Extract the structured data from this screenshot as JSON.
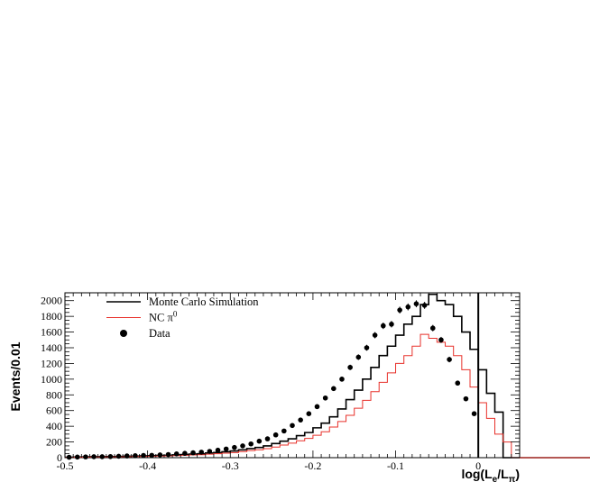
{
  "chart_data": {
    "type": "line",
    "xlabel_main": "log(L",
    "xlabel_sub1": "e",
    "xlabel_mid": "/L",
    "xlabel_sub2": "π",
    "xlabel_end": ")",
    "ylabel": "Events/0.01",
    "xlim": [
      -0.5,
      0.05
    ],
    "ylim": [
      0,
      2100
    ],
    "x_ticks": [
      -0.5,
      -0.4,
      -0.3,
      -0.2,
      -0.1,
      0
    ],
    "x_tick_labels": [
      "-0.5",
      "-0.4",
      "-0.3",
      "-0.2",
      "-0.1",
      "0"
    ],
    "y_ticks": [
      0,
      200,
      400,
      600,
      800,
      1000,
      1200,
      1400,
      1600,
      1800,
      2000
    ],
    "y_tick_labels": [
      "0",
      "200",
      "400",
      "600",
      "800",
      "1000",
      "1200",
      "1400",
      "1600",
      "1800",
      "2000"
    ],
    "bin_edges_start": -0.5,
    "bin_width": 0.01,
    "legend": {
      "placement": "top-left",
      "entries": [
        {
          "label": "Monte Carlo Simulation",
          "color": "#000000",
          "kind": "line"
        },
        {
          "label": "NC π",
          "sup": "0",
          "color": "#e8302a",
          "kind": "line"
        },
        {
          "label": "Data",
          "color": "#000000",
          "kind": "marker"
        }
      ]
    },
    "cut_line_x": 0,
    "series": [
      {
        "name": "Monte Carlo Simulation",
        "color": "#000000",
        "values": [
          5,
          8,
          10,
          12,
          12,
          14,
          15,
          18,
          20,
          22,
          25,
          28,
          30,
          35,
          40,
          45,
          50,
          60,
          65,
          75,
          85,
          100,
          115,
          130,
          150,
          180,
          210,
          240,
          280,
          320,
          380,
          440,
          520,
          620,
          740,
          860,
          1000,
          1150,
          1300,
          1420,
          1560,
          1700,
          1800,
          1950,
          2080,
          2000,
          1950,
          1800,
          1600,
          1380,
          1120,
          820,
          580,
          0,
          0,
          0,
          0,
          0,
          0,
          0,
          0,
          0,
          0,
          0,
          0
        ]
      },
      {
        "name": "NC π0",
        "color": "#e8302a",
        "values": [
          3,
          5,
          6,
          8,
          8,
          10,
          10,
          12,
          14,
          15,
          18,
          20,
          22,
          26,
          30,
          34,
          38,
          45,
          50,
          58,
          65,
          78,
          90,
          100,
          115,
          135,
          160,
          185,
          215,
          245,
          285,
          330,
          390,
          460,
          540,
          630,
          730,
          840,
          960,
          1080,
          1200,
          1300,
          1420,
          1570,
          1520,
          1470,
          1420,
          1300,
          1120,
          900,
          700,
          500,
          300,
          200,
          0,
          0,
          0,
          0,
          0,
          0,
          0,
          0,
          0,
          0,
          0
        ]
      }
    ],
    "data_points": {
      "name": "Data",
      "x": [
        -0.495,
        -0.485,
        -0.475,
        -0.465,
        -0.455,
        -0.445,
        -0.435,
        -0.425,
        -0.415,
        -0.405,
        -0.395,
        -0.385,
        -0.375,
        -0.365,
        -0.355,
        -0.345,
        -0.335,
        -0.325,
        -0.315,
        -0.305,
        -0.295,
        -0.285,
        -0.275,
        -0.265,
        -0.255,
        -0.245,
        -0.235,
        -0.225,
        -0.215,
        -0.205,
        -0.195,
        -0.185,
        -0.175,
        -0.165,
        -0.155,
        -0.145,
        -0.135,
        -0.125,
        -0.115,
        -0.105,
        -0.095,
        -0.085,
        -0.075,
        -0.065,
        -0.055,
        -0.045,
        -0.035,
        -0.025,
        -0.015,
        -0.005
      ],
      "y": [
        5,
        8,
        10,
        12,
        12,
        14,
        18,
        22,
        25,
        28,
        30,
        35,
        40,
        48,
        55,
        62,
        70,
        80,
        95,
        110,
        130,
        150,
        175,
        210,
        240,
        290,
        340,
        410,
        480,
        560,
        650,
        760,
        880,
        1000,
        1150,
        1280,
        1400,
        1560,
        1680,
        1700,
        1880,
        1920,
        1960,
        1940,
        1650,
        1500,
        1250,
        950,
        750,
        560
      ]
    }
  }
}
